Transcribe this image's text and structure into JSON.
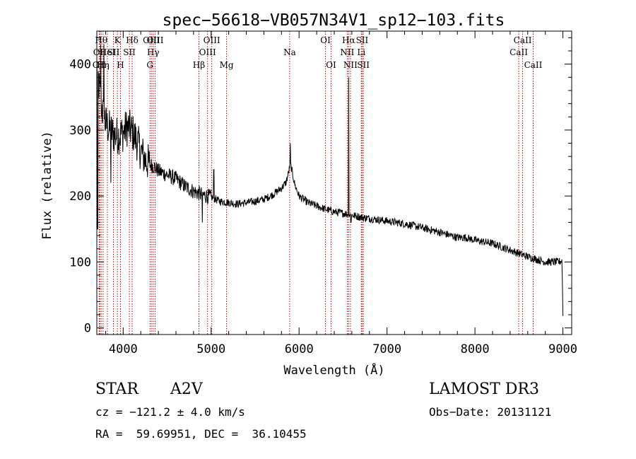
{
  "chart_data": {
    "type": "line",
    "title": "spec−56618−VB057N34V1_sp12−103.fits",
    "xlabel": "Wavelength (Å)",
    "ylabel": "Flux (relative)",
    "xlim": [
      3700,
      9100
    ],
    "ylim": [
      -10,
      450
    ],
    "x_ticks": [
      4000,
      5000,
      6000,
      7000,
      8000,
      9000
    ],
    "y_ticks": [
      0,
      100,
      200,
      300,
      400
    ],
    "line_color": "#000000",
    "marker_color": "#cc0000",
    "continuum": [
      [
        3700,
        400
      ],
      [
        3730,
        360
      ],
      [
        3760,
        330
      ],
      [
        3800,
        310
      ],
      [
        3850,
        300
      ],
      [
        3900,
        292
      ],
      [
        3950,
        292
      ],
      [
        4000,
        296
      ],
      [
        4050,
        305
      ],
      [
        4100,
        298
      ],
      [
        4150,
        285
      ],
      [
        4200,
        268
      ],
      [
        4250,
        255
      ],
      [
        4300,
        248
      ],
      [
        4350,
        245
      ],
      [
        4400,
        238
      ],
      [
        4500,
        232
      ],
      [
        4600,
        226
      ],
      [
        4700,
        215
      ],
      [
        4800,
        207
      ],
      [
        4900,
        202
      ],
      [
        5000,
        198
      ],
      [
        5100,
        192
      ],
      [
        5200,
        190
      ],
      [
        5300,
        188
      ],
      [
        5400,
        190
      ],
      [
        5500,
        192
      ],
      [
        5600,
        195
      ],
      [
        5700,
        202
      ],
      [
        5800,
        212
      ],
      [
        5850,
        220
      ],
      [
        5880,
        235
      ],
      [
        5900,
        250
      ],
      [
        5920,
        237
      ],
      [
        5950,
        218
      ],
      [
        6000,
        200
      ],
      [
        6100,
        190
      ],
      [
        6200,
        185
      ],
      [
        6300,
        180
      ],
      [
        6400,
        176
      ],
      [
        6500,
        174
      ],
      [
        6600,
        171
      ],
      [
        6700,
        168
      ],
      [
        6800,
        166
      ],
      [
        7000,
        162
      ],
      [
        7200,
        158
      ],
      [
        7400,
        152
      ],
      [
        7600,
        145
      ],
      [
        7800,
        137
      ],
      [
        7900,
        137
      ],
      [
        8000,
        133
      ],
      [
        8200,
        128
      ],
      [
        8400,
        118
      ],
      [
        8600,
        108
      ],
      [
        8800,
        100
      ],
      [
        8950,
        100
      ],
      [
        8990,
        102
      ],
      [
        8996,
        50
      ],
      [
        9000,
        20
      ]
    ],
    "spikes": [
      {
        "x": 3710,
        "y": 150
      },
      {
        "x": 3745,
        "y": 430
      },
      {
        "x": 3780,
        "y": 430
      },
      {
        "x": 3860,
        "y": 220
      },
      {
        "x": 4900,
        "y": 160
      },
      {
        "x": 5030,
        "y": 240
      },
      {
        "x": 5900,
        "y": 280
      },
      {
        "x": 6563,
        "y": 380
      },
      {
        "x": 6590,
        "y": 160
      }
    ],
    "lines": [
      {
        "wavelength": 3727,
        "label": "OII",
        "row": 2
      },
      {
        "wavelength": 3735,
        "label": "OII",
        "row": 1
      },
      {
        "wavelength": 3750,
        "label": "Hθ",
        "row": 0
      },
      {
        "wavelength": 3771,
        "label": "Hη",
        "row": 2
      },
      {
        "wavelength": 3820,
        "label": "HeI",
        "row": 1
      },
      {
        "wavelength": 3889,
        "label": "SII",
        "row": 1
      },
      {
        "wavelength": 3934,
        "label": "K",
        "row": 0
      },
      {
        "wavelength": 3969,
        "label": "H",
        "row": 2
      },
      {
        "wavelength": 4070,
        "label": "SII",
        "row": 1
      },
      {
        "wavelength": 4102,
        "label": "Hδ",
        "row": 0
      },
      {
        "wavelength": 4304,
        "label": "G",
        "row": 2
      },
      {
        "wavelength": 4320,
        "label": "OIII",
        "row": 0
      },
      {
        "wavelength": 4341,
        "label": "Hγ",
        "row": 1
      },
      {
        "wavelength": 4363,
        "label": "OIII",
        "row": 0
      },
      {
        "wavelength": 4861,
        "label": "Hβ",
        "row": 2
      },
      {
        "wavelength": 4959,
        "label": "OIII",
        "row": 1
      },
      {
        "wavelength": 5007,
        "label": "OIII",
        "row": 0
      },
      {
        "wavelength": 5175,
        "label": "Mg",
        "row": 2
      },
      {
        "wavelength": 5893,
        "label": "Na",
        "row": 1
      },
      {
        "wavelength": 6300,
        "label": "OI",
        "row": 0
      },
      {
        "wavelength": 6364,
        "label": "OI",
        "row": 2
      },
      {
        "wavelength": 6548,
        "label": "NII",
        "row": 1
      },
      {
        "wavelength": 6563,
        "label": "Hα",
        "row": 0
      },
      {
        "wavelength": 6584,
        "label": "NII",
        "row": 2
      },
      {
        "wavelength": 6708,
        "label": "Li",
        "row": 1
      },
      {
        "wavelength": 6717,
        "label": "SII",
        "row": 0
      },
      {
        "wavelength": 6731,
        "label": "SII",
        "row": 2
      },
      {
        "wavelength": 8498,
        "label": "CaII",
        "row": 1
      },
      {
        "wavelength": 8542,
        "label": "CaII",
        "row": 0
      },
      {
        "wavelength": 8662,
        "label": "CaII",
        "row": 2
      }
    ]
  },
  "info": {
    "object_class": "STAR",
    "subclass": "A2V",
    "survey": "LAMOST DR3",
    "redshift": "cz = −121.2 ± 4.0 km/s",
    "obs_date": "Obs−Date: 20131121",
    "coords": "RA =  59.69951, DEC =  36.10455"
  }
}
